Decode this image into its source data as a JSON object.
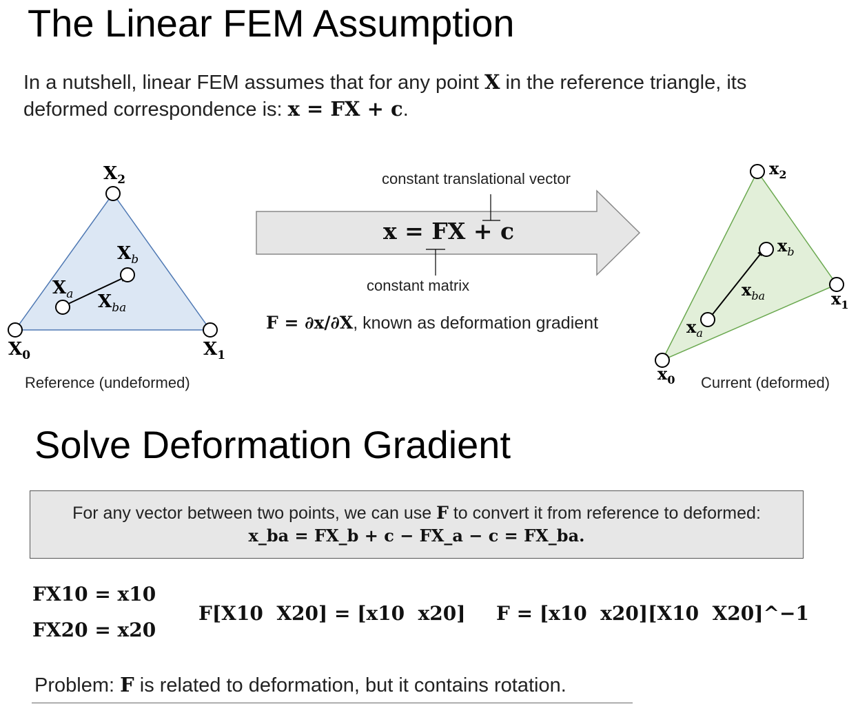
{
  "title1": "The Linear FEM Assumption",
  "intro": {
    "line1_pre": "In a nutshell, linear FEM assumes that for any point ",
    "line1_X": "X",
    "line1_post": " in the reference triangle, its",
    "line2_pre": "deformed correspondence is: ",
    "line2_eq": "x = FX + c",
    "line2_post": "."
  },
  "reference": {
    "caption": "Reference (undeformed)",
    "labels": {
      "X0": "X",
      "X0_sub": "0",
      "X1": "X",
      "X1_sub": "1",
      "X2": "X",
      "X2_sub": "2",
      "Xa": "X",
      "Xa_sub": "a",
      "Xb": "X",
      "Xb_sub": "b",
      "Xba": "X",
      "Xba_sub": "ba"
    },
    "fill": "#dce7f4",
    "stroke": "#4e78b3"
  },
  "current": {
    "caption": "Current (deformed)",
    "labels": {
      "x0": "x",
      "x0_sub": "0",
      "x1": "x",
      "x1_sub": "1",
      "x2": "x",
      "x2_sub": "2",
      "xa": "x",
      "xa_sub": "a",
      "xb": "x",
      "xb_sub": "b",
      "xba": "x",
      "xba_sub": "ba"
    },
    "fill": "#e2efd9",
    "stroke": "#6aa84f"
  },
  "arrow": {
    "equation": "x = FX + c",
    "note_vector": "constant translational vector",
    "note_matrix": "constant matrix",
    "fill": "#e6e6e6",
    "stroke": "#888888"
  },
  "gradient_note": {
    "eq": "F = ∂x/∂X",
    "text": ", known as deformation gradient"
  },
  "title2": "Solve Deformation Gradient",
  "boxnote": {
    "line1_pre": "For any vector between two points, we can use ",
    "line1_F": "F",
    "line1_post": " to convert it from reference to deformed:",
    "line2": "x_ba = FX_b + c − FX_a − c = FX_ba."
  },
  "equations": {
    "eq1": "FX10 = x10",
    "eq2": "FX20 = x20",
    "eq3": "F[X10  X20] = [x10  x20]",
    "eq4": "F = [x10  x20][X10  X20]^−1"
  },
  "problem": {
    "pre": "Problem: ",
    "F": "F",
    "post": " is related to deformation, but it contains rotation."
  }
}
